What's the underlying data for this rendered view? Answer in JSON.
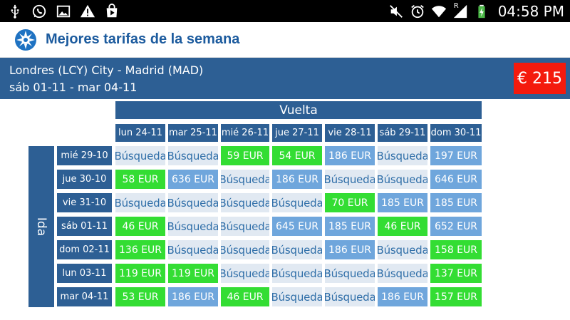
{
  "status_bar": {
    "left_icons": [
      "usb-icon",
      "whatsapp-icon",
      "gallery-icon",
      "warning-icon",
      "play-store-icon"
    ],
    "right_icons": [
      "mute-icon",
      "alarm-icon",
      "wifi-icon",
      "signal-icon",
      "battery-charging-icon"
    ],
    "roaming_label": "R",
    "time": "04:58 PM"
  },
  "app_bar": {
    "logo_icon": "compass-logo-icon",
    "title": "Mejores tarifas de la semana"
  },
  "route": {
    "line1": "Londres (LCY) City - Madrid (MAD)",
    "line2": "sáb 01-11 - mar 04-11",
    "price": "€ 215"
  },
  "grid": {
    "return_label": "Vuelta",
    "outbound_label": "Ida",
    "columns": [
      "lun 24-11",
      "mar 25-11",
      "mié 26-11",
      "jue 27-11",
      "vie 28-11",
      "sáb 29-11",
      "dom 30-11"
    ],
    "rows": [
      {
        "date": "mié 29-10",
        "cells": [
          {
            "text": "Búsqueda",
            "kind": "search"
          },
          {
            "text": "Búsqueda",
            "kind": "search"
          },
          {
            "text": "59 EUR",
            "kind": "cheap"
          },
          {
            "text": "54 EUR",
            "kind": "cheap"
          },
          {
            "text": "186 EUR",
            "kind": "normal"
          },
          {
            "text": "Búsqueda",
            "kind": "search"
          },
          {
            "text": "197 EUR",
            "kind": "normal"
          }
        ]
      },
      {
        "date": "jue 30-10",
        "cells": [
          {
            "text": "58 EUR",
            "kind": "cheap"
          },
          {
            "text": "636 EUR",
            "kind": "normal"
          },
          {
            "text": "Búsqueda",
            "kind": "search"
          },
          {
            "text": "186 EUR",
            "kind": "normal"
          },
          {
            "text": "Búsqueda",
            "kind": "search"
          },
          {
            "text": "Búsqueda",
            "kind": "search"
          },
          {
            "text": "646 EUR",
            "kind": "normal"
          }
        ]
      },
      {
        "date": "vie 31-10",
        "cells": [
          {
            "text": "Búsqueda",
            "kind": "search"
          },
          {
            "text": "Búsqueda",
            "kind": "search"
          },
          {
            "text": "Búsqueda",
            "kind": "search"
          },
          {
            "text": "Búsqueda",
            "kind": "search"
          },
          {
            "text": "70 EUR",
            "kind": "cheap"
          },
          {
            "text": "185 EUR",
            "kind": "normal"
          },
          {
            "text": "185 EUR",
            "kind": "normal"
          }
        ]
      },
      {
        "date": "sáb 01-11",
        "cells": [
          {
            "text": "46 EUR",
            "kind": "cheap"
          },
          {
            "text": "Búsqueda",
            "kind": "search"
          },
          {
            "text": "Búsqueda",
            "kind": "search"
          },
          {
            "text": "645 EUR",
            "kind": "normal"
          },
          {
            "text": "185 EUR",
            "kind": "normal"
          },
          {
            "text": "46 EUR",
            "kind": "cheap"
          },
          {
            "text": "652 EUR",
            "kind": "normal"
          }
        ]
      },
      {
        "date": "dom 02-11",
        "cells": [
          {
            "text": "136 EUR",
            "kind": "cheap"
          },
          {
            "text": "Búsqueda",
            "kind": "search"
          },
          {
            "text": "Búsqueda",
            "kind": "search"
          },
          {
            "text": "Búsqueda",
            "kind": "search"
          },
          {
            "text": "186 EUR",
            "kind": "normal"
          },
          {
            "text": "Búsqueda",
            "kind": "search"
          },
          {
            "text": "158 EUR",
            "kind": "cheap"
          }
        ]
      },
      {
        "date": "lun 03-11",
        "cells": [
          {
            "text": "119 EUR",
            "kind": "cheap"
          },
          {
            "text": "119 EUR",
            "kind": "cheap"
          },
          {
            "text": "Búsqueda",
            "kind": "search"
          },
          {
            "text": "Búsqueda",
            "kind": "search"
          },
          {
            "text": "Búsqueda",
            "kind": "search"
          },
          {
            "text": "Búsqueda",
            "kind": "search"
          },
          {
            "text": "137 EUR",
            "kind": "cheap"
          }
        ]
      },
      {
        "date": "mar 04-11",
        "cells": [
          {
            "text": "53 EUR",
            "kind": "cheap"
          },
          {
            "text": "186 EUR",
            "kind": "normal"
          },
          {
            "text": "46 EUR",
            "kind": "cheap"
          },
          {
            "text": "Búsqueda",
            "kind": "search"
          },
          {
            "text": "Búsqueda",
            "kind": "search"
          },
          {
            "text": "186 EUR",
            "kind": "normal"
          },
          {
            "text": "157 EUR",
            "kind": "cheap"
          }
        ]
      }
    ]
  },
  "colors": {
    "header_blue": "#2d5f94",
    "title_blue": "#1c5b9e",
    "price_red": "#f41a0d",
    "cheap_green": "#33dd33",
    "normal_blue": "#6fa6dc",
    "search_bg": "#e1e9f2",
    "search_text": "#2f6ea8"
  }
}
